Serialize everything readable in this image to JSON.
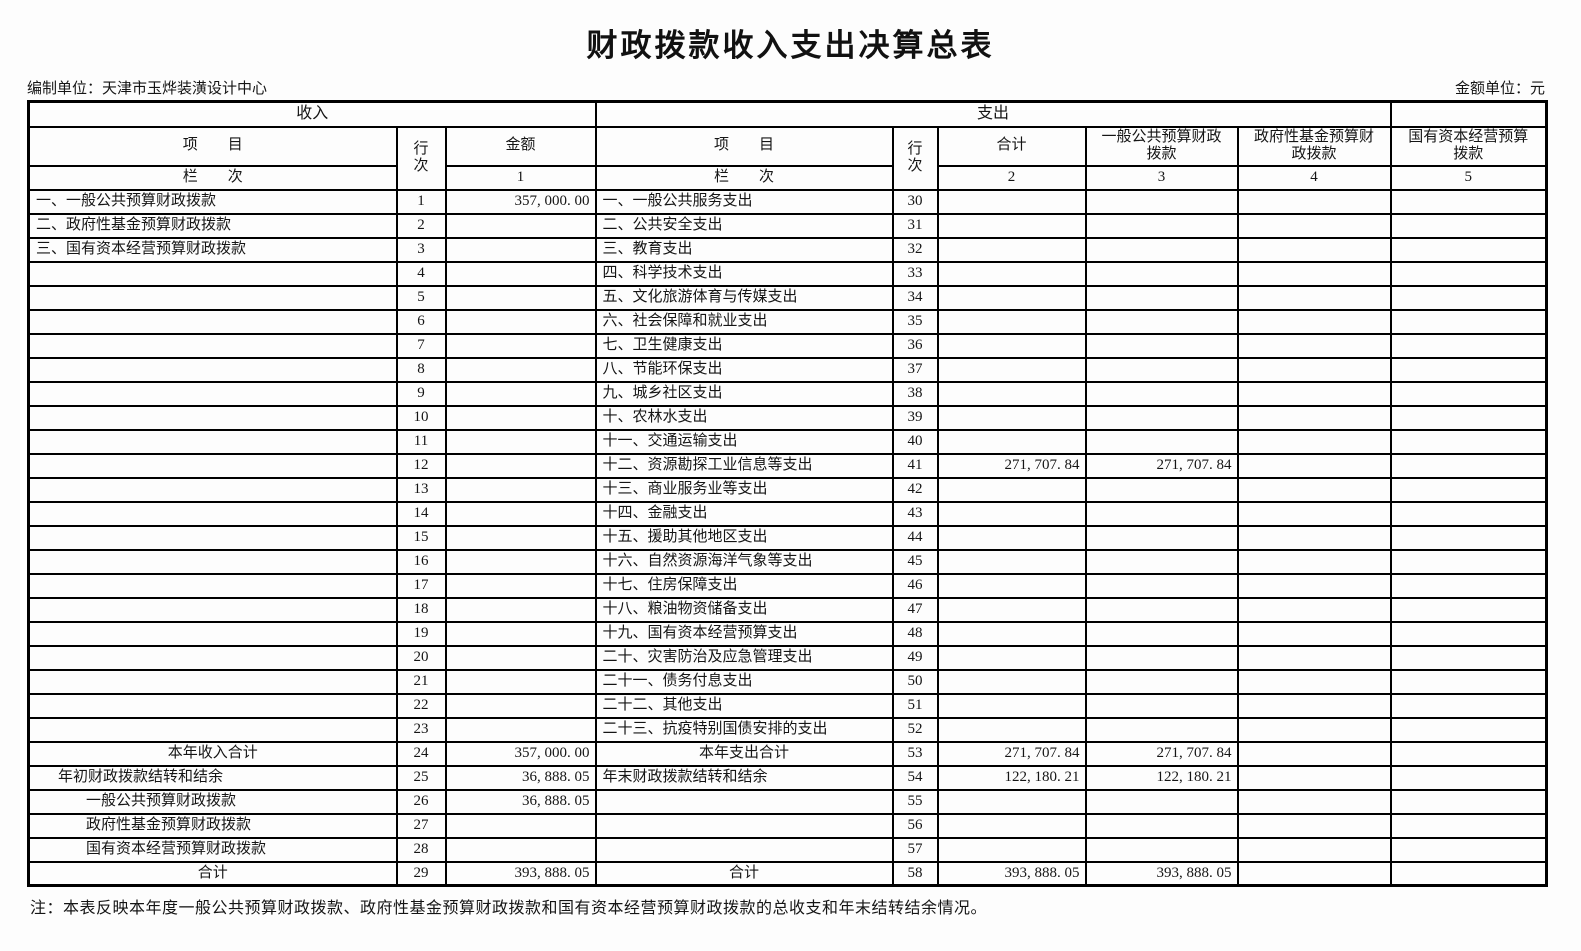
{
  "page": {
    "title": "财政拨款收入支出决算总表",
    "prepared_by": "编制单位：天津市玉烨装潢设计中心",
    "amount_unit": "金额单位：元",
    "footnote": "注：本表反映本年度一般公共预算财政拨款、政府性基金预算财政拨款和国有资本经营预算财政拨款的总收支和年末结转结余情况。"
  },
  "header": {
    "income_section": "收入",
    "expense_section": "支出",
    "income_item": "项　　目",
    "income_lane": "栏　　次",
    "expense_item": "项　　目",
    "expense_lane": "栏　　次",
    "income_row_no": "行次",
    "expense_row_no": "行次",
    "amount": "金额",
    "total": "合计",
    "general_public_budget": "一般公共预算财政拨款",
    "gov_fund_budget": "政府性基金预算财政拨款",
    "state_capital_budget": "国有资本经营预算拨款",
    "col1": "1",
    "col2": "2",
    "col3": "3",
    "col4": "4",
    "col5": "5"
  },
  "rows": [
    {
      "income_item": "一、一般公共预算财政拨款",
      "income_align": "",
      "income_no": "1",
      "income_amount": "357, 000. 00",
      "expense_item": "一、一般公共服务支出",
      "expense_align": "",
      "expense_no": "30",
      "total": "",
      "general": "",
      "gov_fund": "",
      "state_capital": ""
    },
    {
      "income_item": "二、政府性基金预算财政拨款",
      "income_align": "",
      "income_no": "2",
      "income_amount": "",
      "expense_item": "二、公共安全支出",
      "expense_align": "",
      "expense_no": "31",
      "total": "",
      "general": "",
      "gov_fund": "",
      "state_capital": ""
    },
    {
      "income_item": "三、国有资本经营预算财政拨款",
      "income_align": "",
      "income_no": "3",
      "income_amount": "",
      "expense_item": "三、教育支出",
      "expense_align": "",
      "expense_no": "32",
      "total": "",
      "general": "",
      "gov_fund": "",
      "state_capital": ""
    },
    {
      "income_item": "",
      "income_align": "",
      "income_no": "4",
      "income_amount": "",
      "expense_item": "四、科学技术支出",
      "expense_align": "",
      "expense_no": "33",
      "total": "",
      "general": "",
      "gov_fund": "",
      "state_capital": ""
    },
    {
      "income_item": "",
      "income_align": "",
      "income_no": "5",
      "income_amount": "",
      "expense_item": "五、文化旅游体育与传媒支出",
      "expense_align": "",
      "expense_no": "34",
      "total": "",
      "general": "",
      "gov_fund": "",
      "state_capital": ""
    },
    {
      "income_item": "",
      "income_align": "",
      "income_no": "6",
      "income_amount": "",
      "expense_item": "六、社会保障和就业支出",
      "expense_align": "",
      "expense_no": "35",
      "total": "",
      "general": "",
      "gov_fund": "",
      "state_capital": ""
    },
    {
      "income_item": "",
      "income_align": "",
      "income_no": "7",
      "income_amount": "",
      "expense_item": "七、卫生健康支出",
      "expense_align": "",
      "expense_no": "36",
      "total": "",
      "general": "",
      "gov_fund": "",
      "state_capital": ""
    },
    {
      "income_item": "",
      "income_align": "",
      "income_no": "8",
      "income_amount": "",
      "expense_item": "八、节能环保支出",
      "expense_align": "",
      "expense_no": "37",
      "total": "",
      "general": "",
      "gov_fund": "",
      "state_capital": ""
    },
    {
      "income_item": "",
      "income_align": "",
      "income_no": "9",
      "income_amount": "",
      "expense_item": "九、城乡社区支出",
      "expense_align": "",
      "expense_no": "38",
      "total": "",
      "general": "",
      "gov_fund": "",
      "state_capital": ""
    },
    {
      "income_item": "",
      "income_align": "",
      "income_no": "10",
      "income_amount": "",
      "expense_item": "十、农林水支出",
      "expense_align": "",
      "expense_no": "39",
      "total": "",
      "general": "",
      "gov_fund": "",
      "state_capital": ""
    },
    {
      "income_item": "",
      "income_align": "",
      "income_no": "11",
      "income_amount": "",
      "expense_item": "十一、交通运输支出",
      "expense_align": "",
      "expense_no": "40",
      "total": "",
      "general": "",
      "gov_fund": "",
      "state_capital": ""
    },
    {
      "income_item": "",
      "income_align": "",
      "income_no": "12",
      "income_amount": "",
      "expense_item": "十二、资源勘探工业信息等支出",
      "expense_align": "",
      "expense_no": "41",
      "total": "271, 707. 84",
      "general": "271, 707. 84",
      "gov_fund": "",
      "state_capital": ""
    },
    {
      "income_item": "",
      "income_align": "",
      "income_no": "13",
      "income_amount": "",
      "expense_item": "十三、商业服务业等支出",
      "expense_align": "",
      "expense_no": "42",
      "total": "",
      "general": "",
      "gov_fund": "",
      "state_capital": ""
    },
    {
      "income_item": "",
      "income_align": "",
      "income_no": "14",
      "income_amount": "",
      "expense_item": "十四、金融支出",
      "expense_align": "",
      "expense_no": "43",
      "total": "",
      "general": "",
      "gov_fund": "",
      "state_capital": ""
    },
    {
      "income_item": "",
      "income_align": "",
      "income_no": "15",
      "income_amount": "",
      "expense_item": "十五、援助其他地区支出",
      "expense_align": "",
      "expense_no": "44",
      "total": "",
      "general": "",
      "gov_fund": "",
      "state_capital": ""
    },
    {
      "income_item": "",
      "income_align": "",
      "income_no": "16",
      "income_amount": "",
      "expense_item": "十六、自然资源海洋气象等支出",
      "expense_align": "",
      "expense_no": "45",
      "total": "",
      "general": "",
      "gov_fund": "",
      "state_capital": ""
    },
    {
      "income_item": "",
      "income_align": "",
      "income_no": "17",
      "income_amount": "",
      "expense_item": "十七、住房保障支出",
      "expense_align": "",
      "expense_no": "46",
      "total": "",
      "general": "",
      "gov_fund": "",
      "state_capital": ""
    },
    {
      "income_item": "",
      "income_align": "",
      "income_no": "18",
      "income_amount": "",
      "expense_item": "十八、粮油物资储备支出",
      "expense_align": "",
      "expense_no": "47",
      "total": "",
      "general": "",
      "gov_fund": "",
      "state_capital": ""
    },
    {
      "income_item": "",
      "income_align": "",
      "income_no": "19",
      "income_amount": "",
      "expense_item": "十九、国有资本经营预算支出",
      "expense_align": "",
      "expense_no": "48",
      "total": "",
      "general": "",
      "gov_fund": "",
      "state_capital": ""
    },
    {
      "income_item": "",
      "income_align": "",
      "income_no": "20",
      "income_amount": "",
      "expense_item": "二十、灾害防治及应急管理支出",
      "expense_align": "",
      "expense_no": "49",
      "total": "",
      "general": "",
      "gov_fund": "",
      "state_capital": ""
    },
    {
      "income_item": "",
      "income_align": "",
      "income_no": "21",
      "income_amount": "",
      "expense_item": "二十一、债务付息支出",
      "expense_align": "",
      "expense_no": "50",
      "total": "",
      "general": "",
      "gov_fund": "",
      "state_capital": ""
    },
    {
      "income_item": "",
      "income_align": "",
      "income_no": "22",
      "income_amount": "",
      "expense_item": "二十二、其他支出",
      "expense_align": "",
      "expense_no": "51",
      "total": "",
      "general": "",
      "gov_fund": "",
      "state_capital": ""
    },
    {
      "income_item": "",
      "income_align": "",
      "income_no": "23",
      "income_amount": "",
      "expense_item": "二十三、抗疫特别国债安排的支出",
      "expense_align": "",
      "expense_no": "52",
      "total": "",
      "general": "",
      "gov_fund": "",
      "state_capital": ""
    },
    {
      "income_item": "本年收入合计",
      "income_align": "center",
      "income_no": "24",
      "income_amount": "357, 000. 00",
      "expense_item": "本年支出合计",
      "expense_align": "center",
      "expense_no": "53",
      "total": "271, 707. 84",
      "general": "271, 707. 84",
      "gov_fund": "",
      "state_capital": ""
    },
    {
      "income_item": "年初财政拨款结转和结余",
      "income_align": "indent1",
      "income_no": "25",
      "income_amount": "36, 888. 05",
      "expense_item": "年末财政拨款结转和结余",
      "expense_align": "",
      "expense_no": "54",
      "total": "122, 180. 21",
      "general": "122, 180. 21",
      "gov_fund": "",
      "state_capital": ""
    },
    {
      "income_item": "一般公共预算财政拨款",
      "income_align": "indent2",
      "income_no": "26",
      "income_amount": "36, 888. 05",
      "expense_item": "",
      "expense_align": "",
      "expense_no": "55",
      "total": "",
      "general": "",
      "gov_fund": "",
      "state_capital": ""
    },
    {
      "income_item": "政府性基金预算财政拨款",
      "income_align": "indent2",
      "income_no": "27",
      "income_amount": "",
      "expense_item": "",
      "expense_align": "",
      "expense_no": "56",
      "total": "",
      "general": "",
      "gov_fund": "",
      "state_capital": ""
    },
    {
      "income_item": "国有资本经营预算财政拨款",
      "income_align": "indent2",
      "income_no": "28",
      "income_amount": "",
      "expense_item": "",
      "expense_align": "",
      "expense_no": "57",
      "total": "",
      "general": "",
      "gov_fund": "",
      "state_capital": ""
    },
    {
      "income_item": "合计",
      "income_align": "center",
      "income_no": "29",
      "income_amount": "393, 888. 05",
      "expense_item": "合计",
      "expense_align": "center",
      "expense_no": "58",
      "total": "393, 888. 05",
      "general": "393, 888. 05",
      "gov_fund": "",
      "state_capital": ""
    }
  ]
}
